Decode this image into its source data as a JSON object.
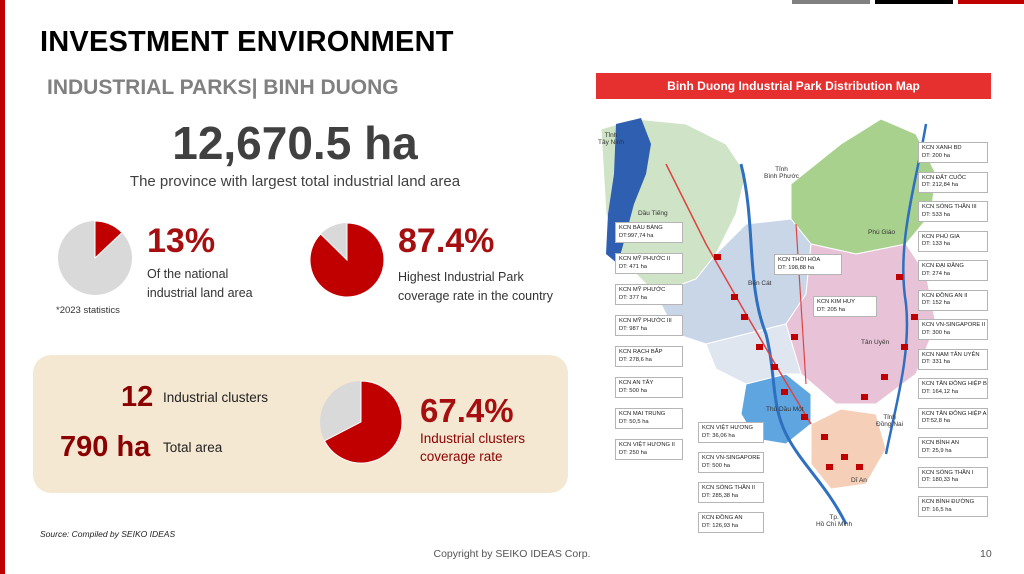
{
  "header": {
    "title": "INVESTMENT ENVIRONMENT",
    "subtitle": "INDUSTRIAL PARKS| BINH DUONG"
  },
  "total": {
    "value": "12,670.5 ha",
    "caption": "The province with largest total industrial land area"
  },
  "national_share": {
    "value": "13%",
    "fraction": 0.13,
    "label_line1": "Of the national",
    "label_line2": "industrial land area",
    "note": "*2023 statistics"
  },
  "coverage": {
    "value": "87.4%",
    "fraction": 0.874,
    "label_line1": "Highest Industrial Park",
    "label_line2": "coverage rate in the country"
  },
  "clusters": {
    "count": "12",
    "count_label": "Industrial clusters",
    "area": "790 ha",
    "area_label": "Total area",
    "coverage_value": "67.4%",
    "coverage_fraction": 0.674,
    "coverage_line1": "Industrial clusters",
    "coverage_line2": "coverage rate"
  },
  "source": "Source: Compiled by SEIKO IDEAS",
  "footer": {
    "copyright": "Copyright by SEIKO IDEAS Corp.",
    "page": "10"
  },
  "colors": {
    "accent_red": "#a50f0f",
    "pie_grey": "#d9d9d9",
    "bar_red": "#c00000"
  },
  "map": {
    "title": "Binh Duong Industrial Park Distribution Map",
    "place_labels": {
      "tay_ninh": "Tỉnh\nTây Ninh",
      "binh_phuoc": "Tỉnh\nBình Phước",
      "dong_nai": "Tỉnh\nĐồng Nai",
      "hcm": "Tp.\nHồ Chí Minh",
      "dau_tieng": "Dầu Tiếng",
      "ben_cat": "Bến Cát",
      "phu_giao": "Phú Giáo",
      "tan_uyen": "Tân Uyên",
      "thu_dau_mot": "Thủ Dầu Một",
      "di_an": "Dĩ An"
    },
    "left_parks": [
      {
        "name": "KCN BÀU BÀNG",
        "area": "DT:997,74 ha"
      },
      {
        "name": "KCN MỸ PHƯỚC II",
        "area": "DT: 471 ha"
      },
      {
        "name": "KCN MỸ PHƯỚC",
        "area": "DT: 377 ha"
      },
      {
        "name": "KCN MỸ PHƯỚC III",
        "area": "DT: 987 ha"
      },
      {
        "name": "KCN RẠCH BẮP",
        "area": "DT: 278,6 ha"
      },
      {
        "name": "KCN AN TÂY",
        "area": "DT: 500 ha"
      },
      {
        "name": "KCN MAI TRUNG",
        "area": "DT: 50,5 ha"
      },
      {
        "name": "KCN VIỆT HƯƠNG II",
        "area": "DT: 250 ha"
      }
    ],
    "center_parks": [
      {
        "name": "KCN THỚI HÒA",
        "area": "DT: 198,88 ha"
      },
      {
        "name": "KCN KIM HUY",
        "area": "DT: 205 ha"
      }
    ],
    "bottom_parks": [
      {
        "name": "KCN VIỆT HƯƠNG",
        "area": "DT: 36,06 ha"
      },
      {
        "name": "KCN VN-SINGAPORE",
        "area": "DT: 500 ha"
      },
      {
        "name": "KCN SÓNG THẦN II",
        "area": "DT: 285,38 ha"
      },
      {
        "name": "KCN ĐỒNG AN",
        "area": "DT: 126,93 ha"
      }
    ],
    "right_parks": [
      {
        "name": "KCN XANH BD",
        "area": "DT: 200 ha"
      },
      {
        "name": "KCN ĐẤT CUỐC",
        "area": "DT: 212,84 ha"
      },
      {
        "name": "KCN SÓNG THẦN III",
        "area": "DT: 533 ha"
      },
      {
        "name": "KCN PHÚ GIA",
        "area": "DT: 133 ha"
      },
      {
        "name": "KCN ĐẠI ĐĂNG",
        "area": "DT: 274 ha"
      },
      {
        "name": "KCN ĐỒNG AN II",
        "area": "DT: 152 ha"
      },
      {
        "name": "KCN VN-SINGAPORE II",
        "area": "DT: 300 ha"
      },
      {
        "name": "KCN NAM TÂN UYÊN",
        "area": "DT: 331 ha"
      },
      {
        "name": "KCN TÂN ĐÔNG HIỆP B",
        "area": "DT: 164,12 ha"
      },
      {
        "name": "KCN TÂN ĐÔNG HIỆP A",
        "area": "DT:52,8 ha"
      },
      {
        "name": "KCN BÌNH AN",
        "area": "DT: 25,9 ha"
      },
      {
        "name": "KCN SÓNG THẦN I",
        "area": "DT: 180,33 ha"
      },
      {
        "name": "KCN BÌNH ĐƯỜNG",
        "area": "DT: 16,5 ha"
      }
    ]
  }
}
